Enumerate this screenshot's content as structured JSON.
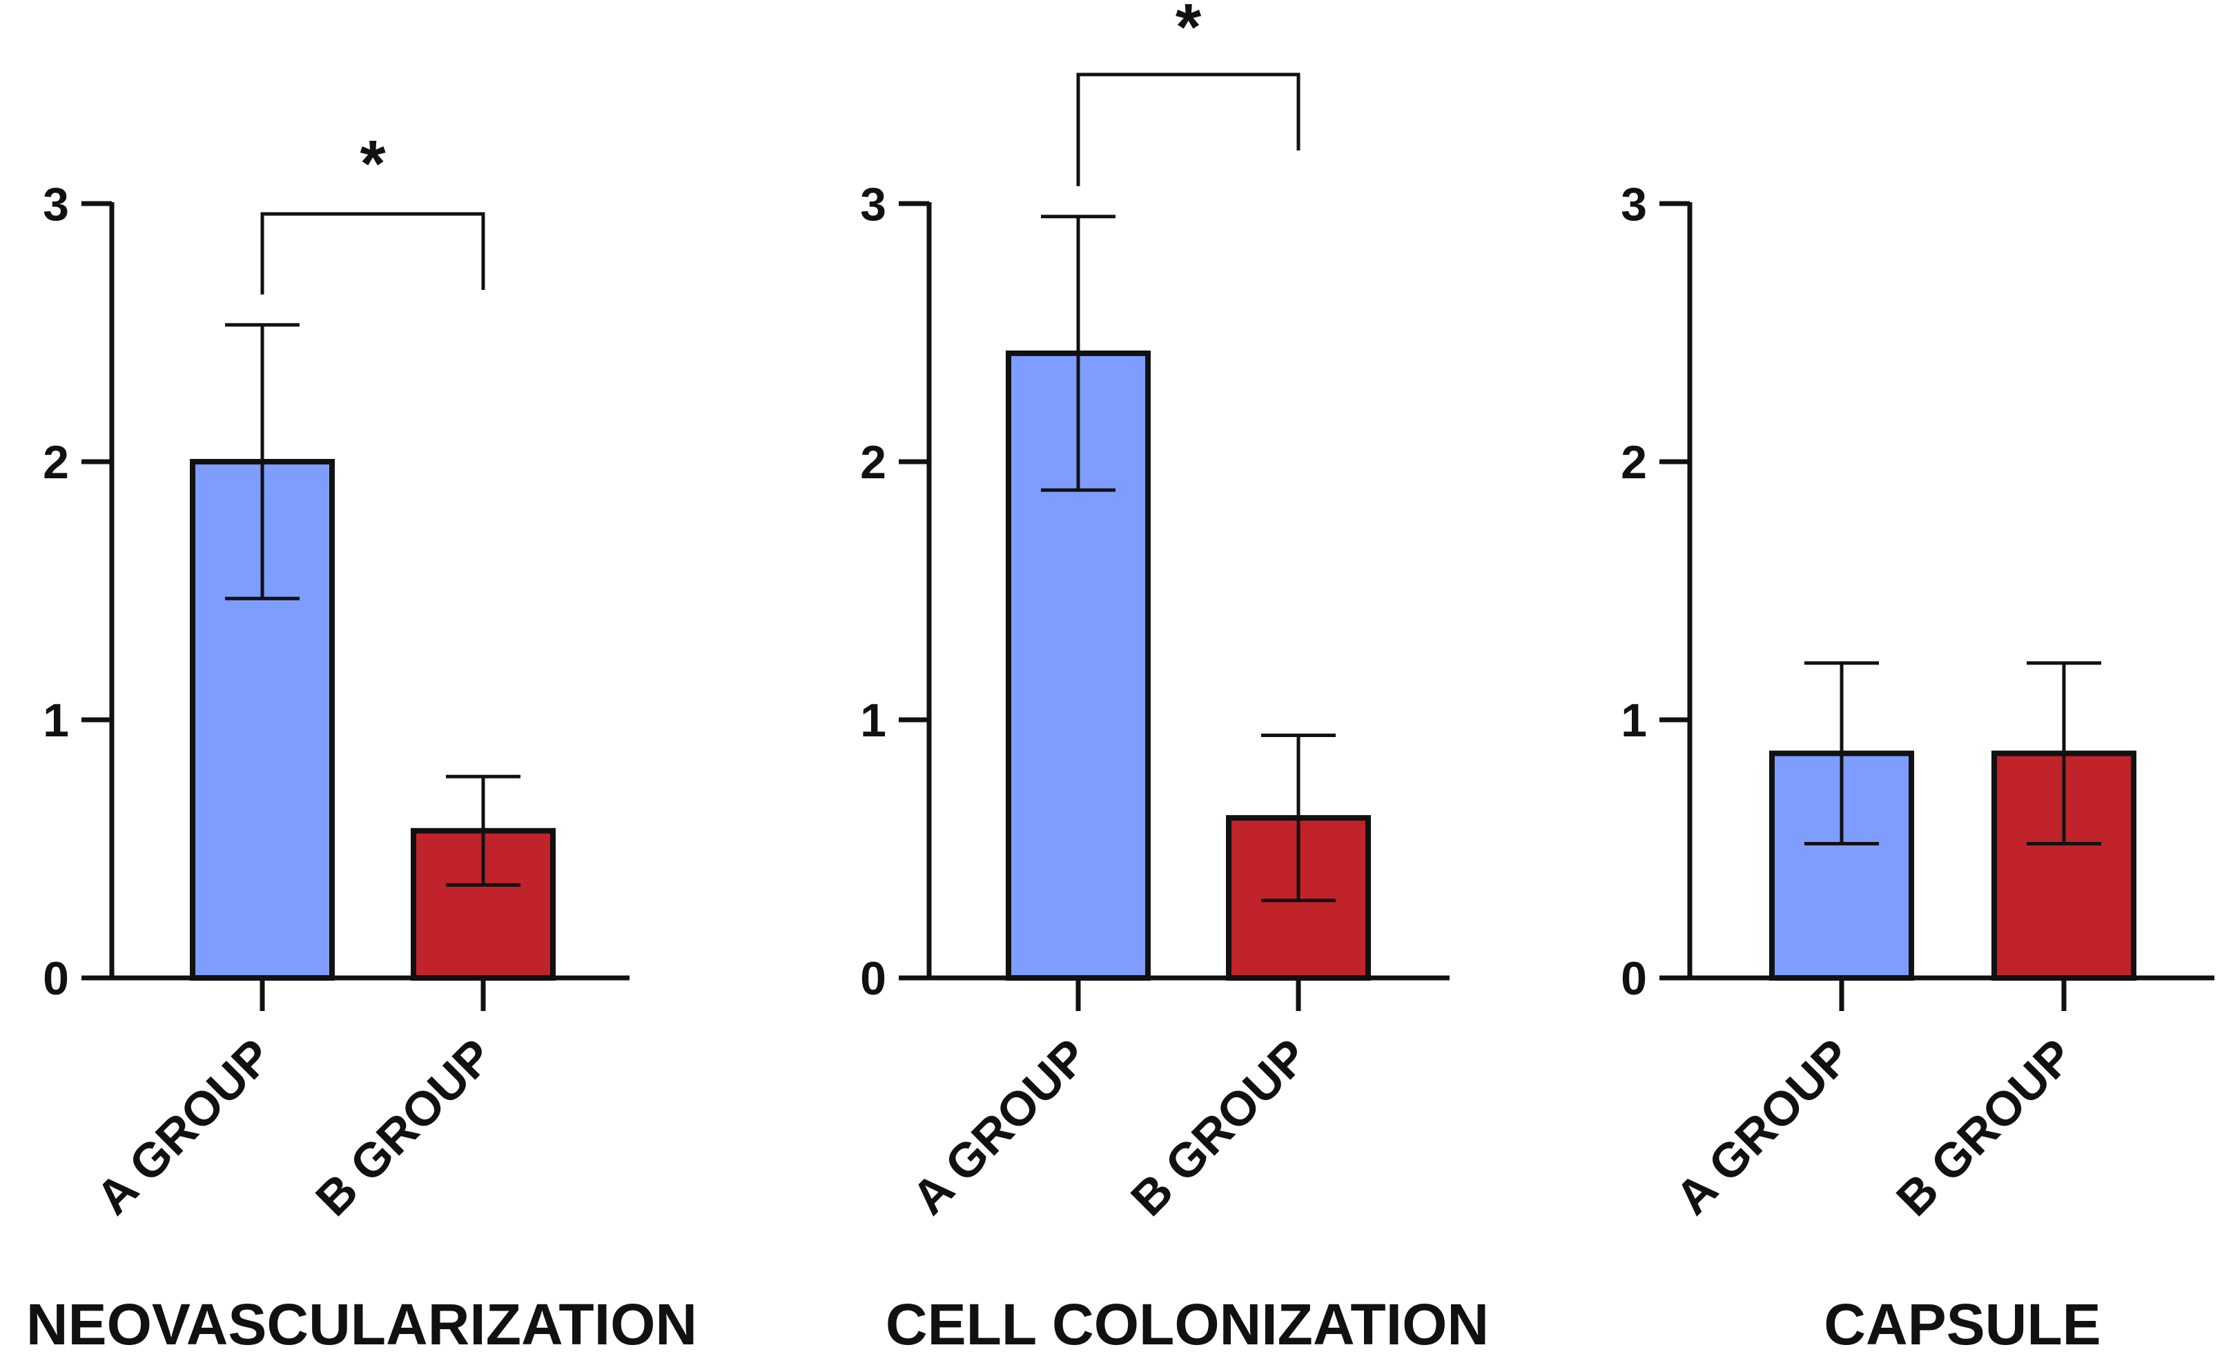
{
  "chart_data": [
    {
      "type": "bar",
      "title": "NEOVASCULARIZATION",
      "categories": [
        "A GROUP",
        "B GROUP"
      ],
      "values": [
        2.0,
        0.57
      ],
      "errors": [
        0.53,
        0.21
      ],
      "ylim": [
        0,
        3
      ],
      "yticks": [
        "0",
        "1",
        "2",
        "3"
      ],
      "significance": {
        "label": "*",
        "between": [
          0,
          1
        ]
      },
      "xlabel": "",
      "ylabel": ""
    },
    {
      "type": "bar",
      "title": "CELL COLONIZATION",
      "categories": [
        "A GROUP",
        "B GROUP"
      ],
      "values": [
        2.42,
        0.62
      ],
      "errors": [
        0.53,
        0.32
      ],
      "ylim": [
        0,
        3
      ],
      "yticks": [
        "0",
        "1",
        "2",
        "3"
      ],
      "significance": {
        "label": "*",
        "between": [
          0,
          1
        ]
      },
      "xlabel": "",
      "ylabel": ""
    },
    {
      "type": "bar",
      "title": "CAPSULE",
      "categories": [
        "A GROUP",
        "B GROUP"
      ],
      "values": [
        0.87,
        0.87
      ],
      "errors": [
        0.35,
        0.35
      ],
      "ylim": [
        0,
        3
      ],
      "yticks": [
        "0",
        "1",
        "2",
        "3"
      ],
      "significance": null,
      "xlabel": "",
      "ylabel": ""
    }
  ],
  "colors": {
    "group_a": "#7f9cff",
    "group_b": "#c0232a",
    "stroke": "#111111"
  }
}
